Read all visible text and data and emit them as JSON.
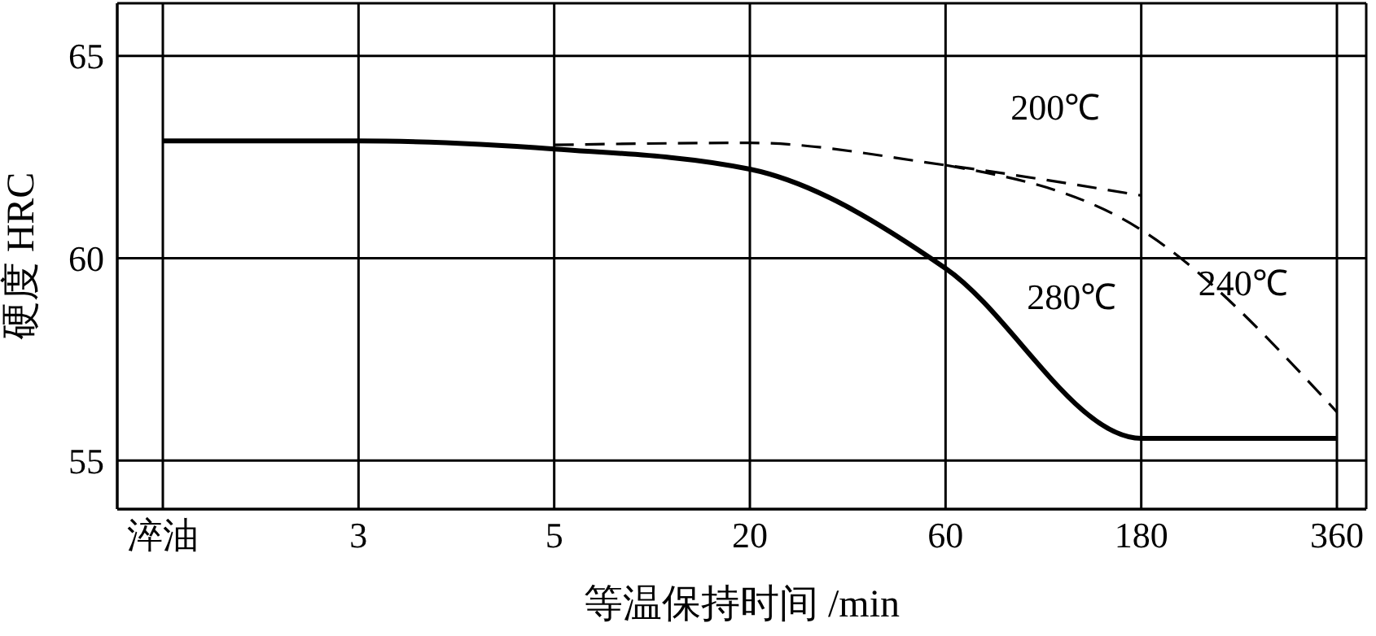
{
  "chart_data": {
    "type": "line",
    "xlabel": "等温保持时间 /min",
    "ylabel": "硬度 HRC",
    "categories": [
      "淬油",
      "3",
      "5",
      "20",
      "60",
      "180",
      "360"
    ],
    "series": [
      {
        "name": "280℃",
        "color": "#000000",
        "line_style": "solid",
        "values": [
          62.9,
          62.9,
          62.7,
          62.2,
          59.75,
          55.55,
          55.55
        ]
      },
      {
        "name": "200℃",
        "color": "#000000",
        "line_style": "dashed",
        "values": [
          null,
          null,
          62.8,
          62.85,
          62.3,
          61.55,
          null
        ]
      },
      {
        "name": "240℃",
        "color": "#000000",
        "line_style": "dashed",
        "values": [
          null,
          null,
          null,
          null,
          62.3,
          60.7,
          56.2
        ]
      }
    ],
    "ylim": [
      53.8,
      66.3
    ],
    "yticks": [
      55,
      60,
      65
    ],
    "grid": true,
    "legend": false,
    "marker": "none"
  }
}
